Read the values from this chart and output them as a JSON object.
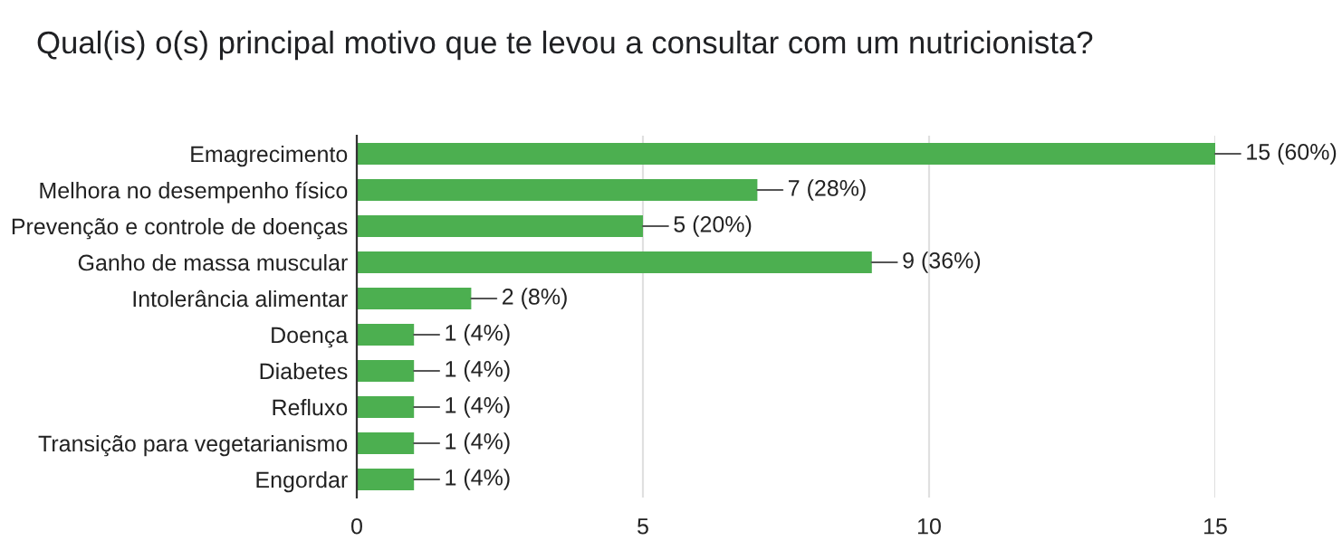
{
  "chart_data": {
    "type": "bar",
    "orientation": "horizontal",
    "title": "Qual(is) o(s) principal motivo que te levou a consultar com um nutricionista?",
    "categories": [
      "Emagrecimento",
      "Melhora no desempenho físico",
      "Prevenção e controle de doenças",
      "Ganho de massa muscular",
      "Intolerância alimentar",
      "Doença",
      "Diabetes",
      "Refluxo",
      "Transição para vegetarianismo",
      "Engordar"
    ],
    "values": [
      15,
      7,
      5,
      9,
      2,
      1,
      1,
      1,
      1,
      1
    ],
    "value_labels": [
      "15 (60%)",
      "7 (28%)",
      "5 (20%)",
      "9 (36%)",
      "2 (8%)",
      "1 (4%)",
      "1 (4%)",
      "1 (4%)",
      "1 (4%)",
      "1 (4%)"
    ],
    "color": "#4caf50",
    "xlim": [
      0,
      15
    ],
    "xticks": [
      0,
      5,
      10,
      15
    ],
    "grid": "x",
    "legend": false
  }
}
